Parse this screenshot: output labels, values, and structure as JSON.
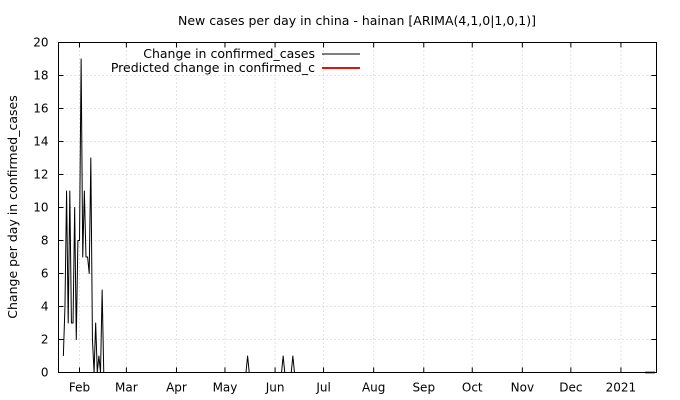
{
  "chart_data": {
    "type": "line",
    "title": "New cases per day in china - hainan [ARIMA(4,1,0|1,0,1)]",
    "xlabel": "",
    "ylabel": "Change per day in confirmed_cases",
    "ylim": [
      0,
      20
    ],
    "yticks": [
      0,
      2,
      4,
      6,
      8,
      10,
      12,
      14,
      16,
      18,
      20
    ],
    "xlim": [
      "2020-01-19",
      "2021-01-23"
    ],
    "xticks": [
      {
        "date": "2020-02-01",
        "label": "Feb"
      },
      {
        "date": "2020-03-01",
        "label": "Mar"
      },
      {
        "date": "2020-04-01",
        "label": "Apr"
      },
      {
        "date": "2020-05-01",
        "label": "May"
      },
      {
        "date": "2020-06-01",
        "label": "Jun"
      },
      {
        "date": "2020-07-01",
        "label": "Jul"
      },
      {
        "date": "2020-08-01",
        "label": "Aug"
      },
      {
        "date": "2020-09-01",
        "label": "Sep"
      },
      {
        "date": "2020-10-01",
        "label": "Oct"
      },
      {
        "date": "2020-11-01",
        "label": "Nov"
      },
      {
        "date": "2020-12-01",
        "label": "Dec"
      },
      {
        "date": "2021-01-01",
        "label": "2021"
      }
    ],
    "grid": true,
    "legend_position": "top-left",
    "series": [
      {
        "name": "Change in confirmed_cases",
        "color": "#000000",
        "points": [
          [
            "2020-01-22",
            1
          ],
          [
            "2020-01-23",
            4
          ],
          [
            "2020-01-24",
            11
          ],
          [
            "2020-01-25",
            3
          ],
          [
            "2020-01-26",
            11
          ],
          [
            "2020-01-27",
            3
          ],
          [
            "2020-01-28",
            3
          ],
          [
            "2020-01-29",
            10
          ],
          [
            "2020-01-30",
            2
          ],
          [
            "2020-01-31",
            8
          ],
          [
            "2020-02-01",
            8
          ],
          [
            "2020-02-02",
            19
          ],
          [
            "2020-02-03",
            7
          ],
          [
            "2020-02-04",
            11
          ],
          [
            "2020-02-05",
            7
          ],
          [
            "2020-02-06",
            7
          ],
          [
            "2020-02-07",
            6
          ],
          [
            "2020-02-08",
            13
          ],
          [
            "2020-02-09",
            2
          ],
          [
            "2020-02-10",
            0
          ],
          [
            "2020-02-11",
            3
          ],
          [
            "2020-02-12",
            0
          ],
          [
            "2020-02-13",
            1
          ],
          [
            "2020-02-14",
            0
          ],
          [
            "2020-02-15",
            5
          ],
          [
            "2020-02-16",
            0
          ],
          [
            "2020-05-14",
            0
          ],
          [
            "2020-05-15",
            1
          ],
          [
            "2020-05-16",
            0
          ],
          [
            "2020-06-05",
            0
          ],
          [
            "2020-06-06",
            1
          ],
          [
            "2020-06-07",
            0
          ],
          [
            "2020-06-11",
            0
          ],
          [
            "2020-06-12",
            1
          ],
          [
            "2020-06-13",
            0
          ],
          [
            "2021-01-16",
            0
          ]
        ]
      },
      {
        "name": "Predicted change in confirmed_c",
        "color": "#e8140a",
        "points": [
          [
            "2021-01-16",
            0
          ],
          [
            "2021-01-17",
            0
          ],
          [
            "2021-01-18",
            0
          ],
          [
            "2021-01-19",
            0
          ],
          [
            "2021-01-20",
            0
          ],
          [
            "2021-01-21",
            0
          ],
          [
            "2021-01-22",
            0
          ]
        ]
      }
    ]
  }
}
